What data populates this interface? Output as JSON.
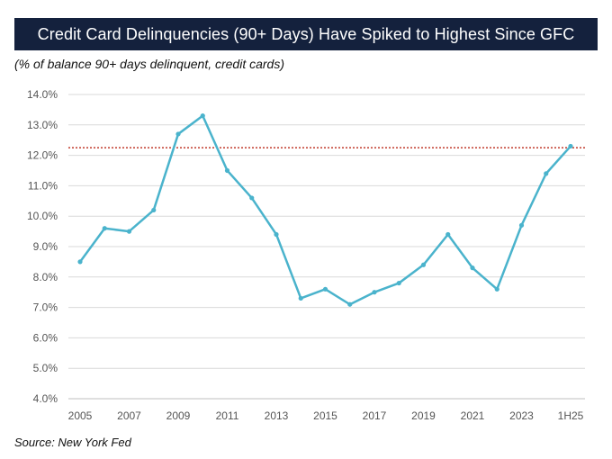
{
  "header": {
    "title": "Credit Card Delinquencies (90+ Days) Have Spiked to Highest Since GFC",
    "subtitle": "(% of balance 90+ days delinquent, credit cards)"
  },
  "footer": {
    "source": "Source: New York Fed"
  },
  "colors": {
    "title_bg": "#14213d",
    "line": "#4ab3cc",
    "reference_line": "#c0392b",
    "grid": "#d9d9d9"
  },
  "chart_data": {
    "type": "line",
    "title": "Credit Card Delinquencies (90+ Days) Have Spiked to Highest Since GFC",
    "ylabel": "% of balance 90+ days delinquent, credit cards",
    "xlabel": "",
    "ylim": [
      4.0,
      14.0
    ],
    "y_ticks": [
      4.0,
      5.0,
      6.0,
      7.0,
      8.0,
      9.0,
      10.0,
      11.0,
      12.0,
      13.0,
      14.0
    ],
    "y_tick_labels": [
      "4.0%",
      "5.0%",
      "6.0%",
      "7.0%",
      "8.0%",
      "9.0%",
      "10.0%",
      "11.0%",
      "12.0%",
      "13.0%",
      "14.0%"
    ],
    "categories": [
      "2005",
      "2006",
      "2007",
      "2008",
      "2009",
      "2010",
      "2011",
      "2012",
      "2013",
      "2014",
      "2015",
      "2016",
      "2017",
      "2018",
      "2019",
      "2020",
      "2021",
      "2022",
      "2023",
      "2024",
      "1H25"
    ],
    "x_tick_labels": [
      "2005",
      "",
      "2007",
      "",
      "2009",
      "",
      "2011",
      "",
      "2013",
      "",
      "2015",
      "",
      "2017",
      "",
      "2019",
      "",
      "2021",
      "",
      "2023",
      "",
      "1H25"
    ],
    "series": [
      {
        "name": "90+ days delinquent",
        "values": [
          8.5,
          9.6,
          9.5,
          10.2,
          12.7,
          13.3,
          11.5,
          10.6,
          9.4,
          7.3,
          7.6,
          7.1,
          7.5,
          7.8,
          8.4,
          9.4,
          8.3,
          7.6,
          9.7,
          11.4,
          12.3
        ]
      }
    ],
    "reference_line": {
      "value": 12.25,
      "style": "dotted"
    },
    "grid": true
  }
}
